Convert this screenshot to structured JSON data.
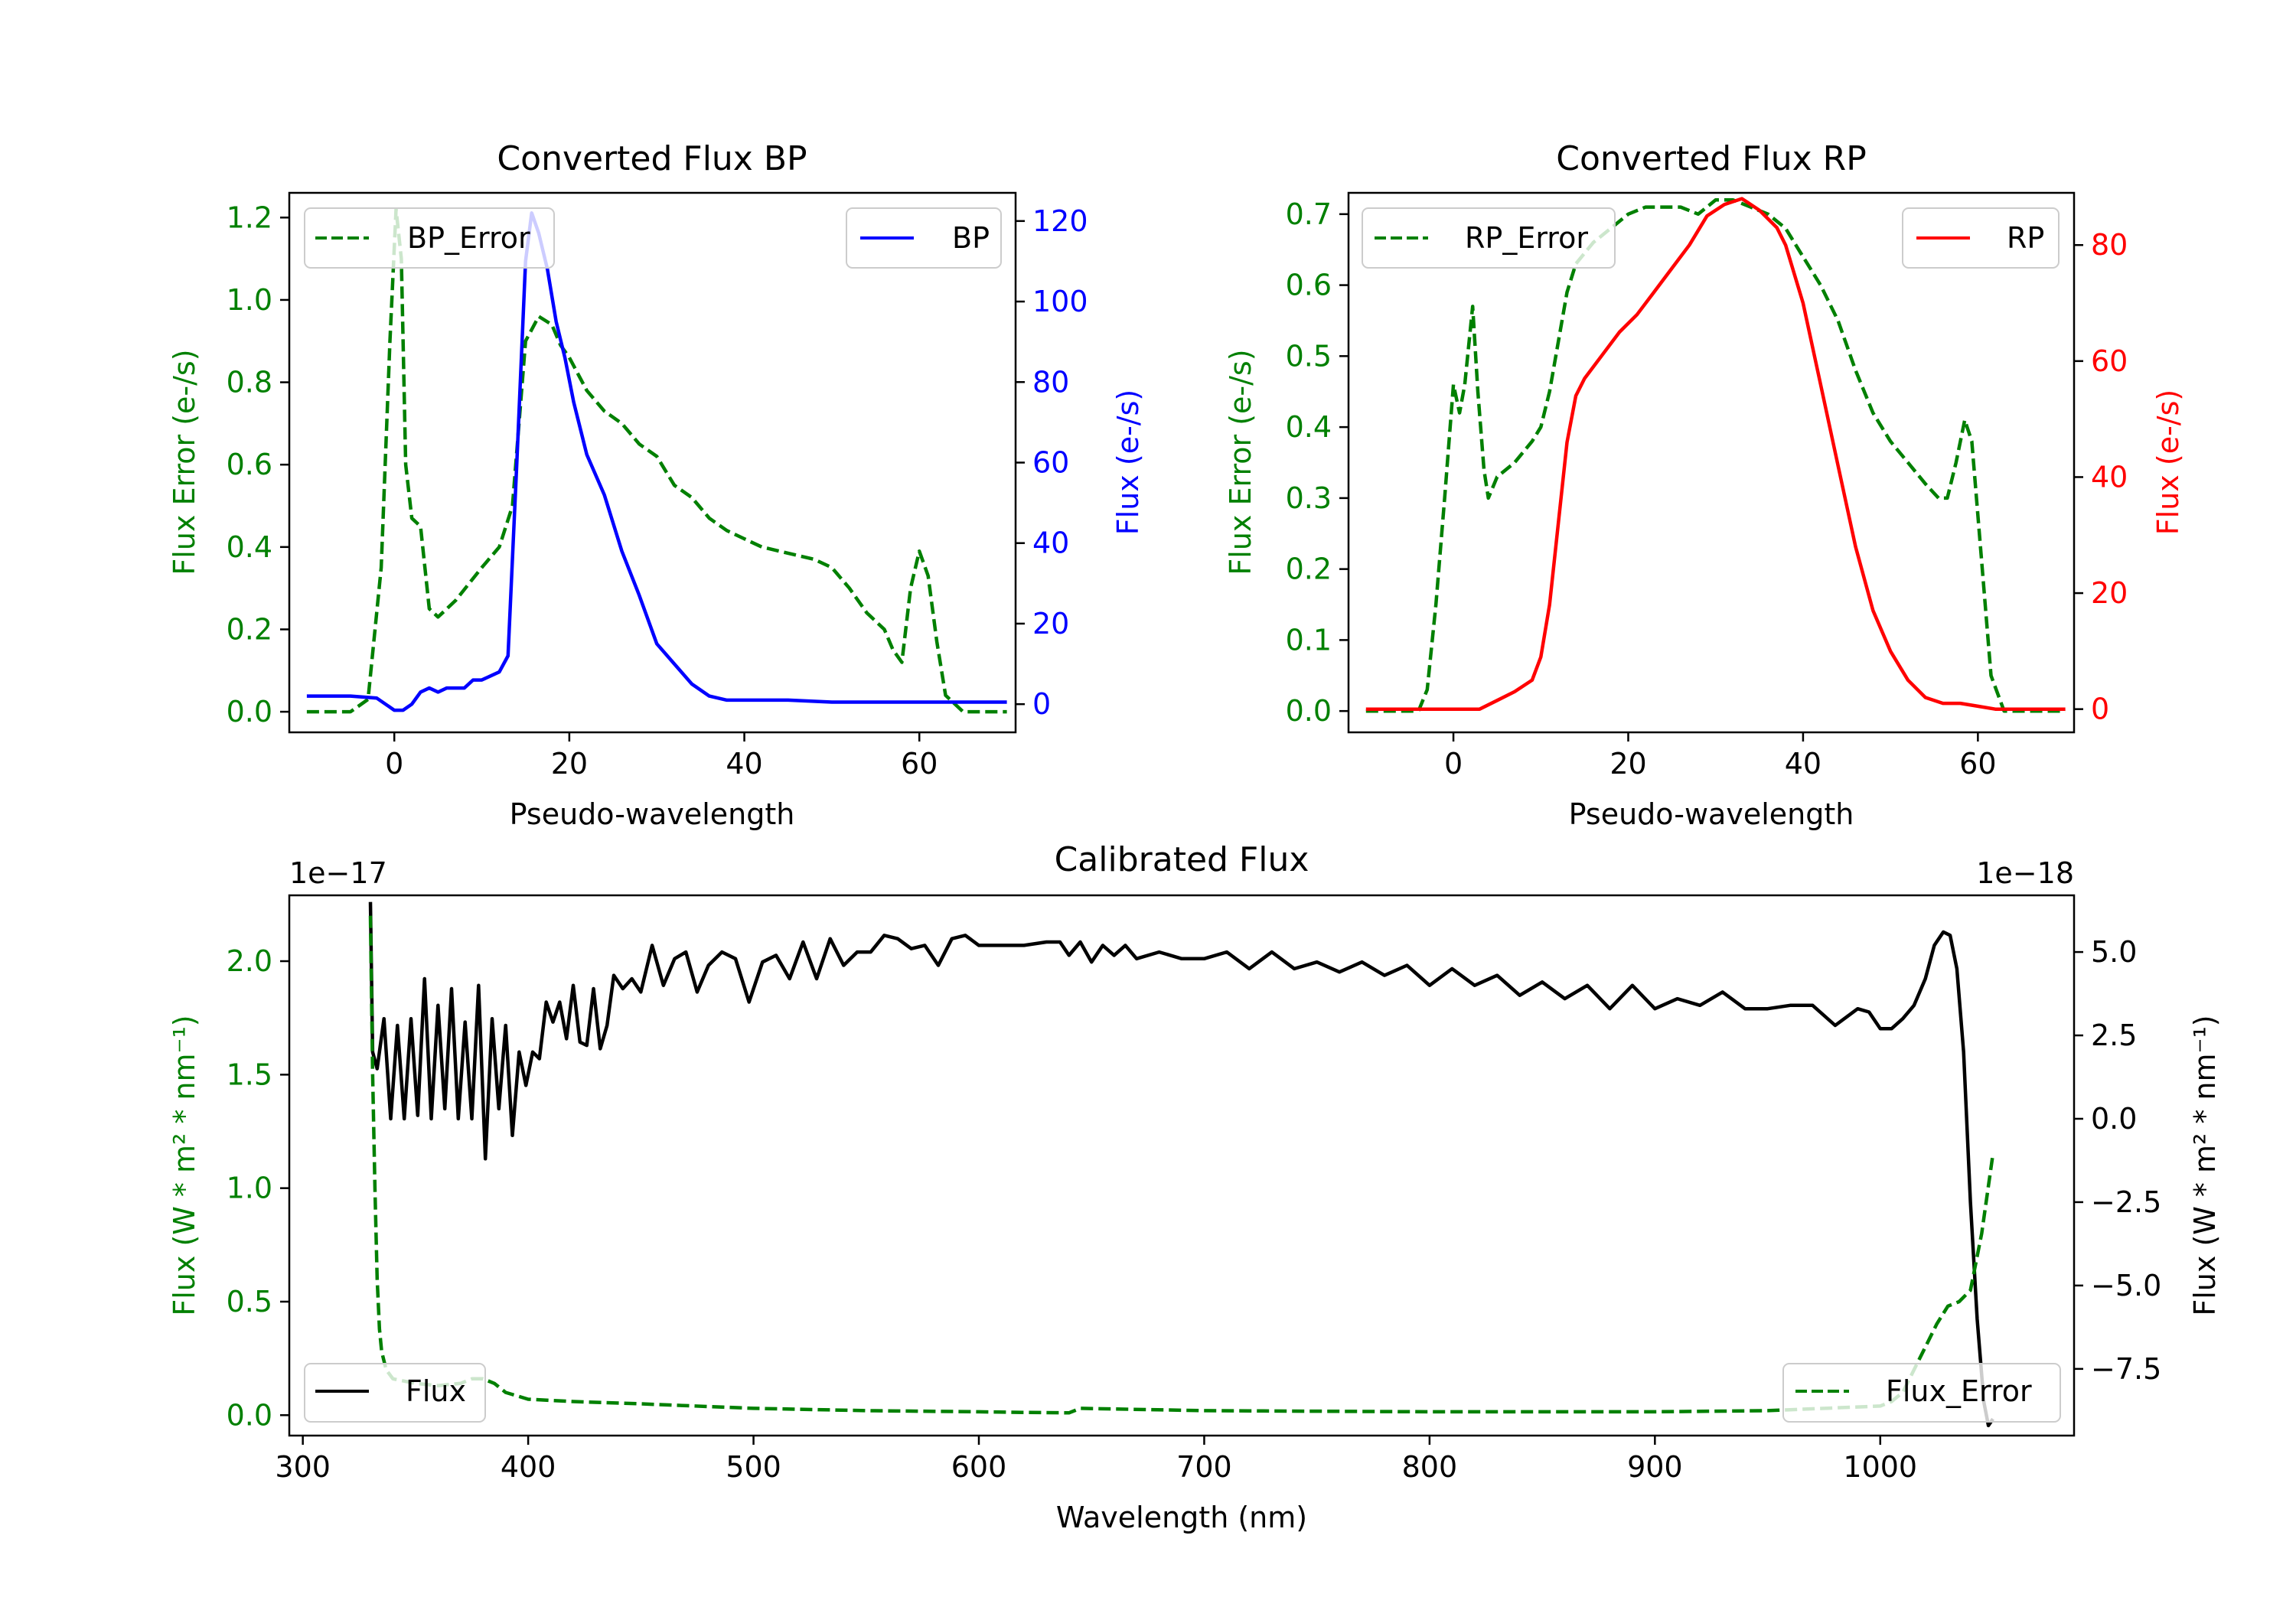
{
  "colors": {
    "green": "#008000",
    "blue": "#0000ff",
    "red": "#ff0000",
    "black": "#000000"
  },
  "chart_data": [
    {
      "id": "bp",
      "type": "line",
      "title": "Converted Flux BP",
      "xlabel": "Pseudo-wavelength",
      "ylabel_left": "Flux Error (e-/s)",
      "ylabel_right": "Flux (e-/s)",
      "xlim": [
        -12,
        71
      ],
      "ylim_left": [
        -0.05,
        1.26
      ],
      "ylim_right": [
        -7,
        127
      ],
      "xticks": [
        0,
        20,
        40,
        60
      ],
      "yticks_left": [
        0.0,
        0.2,
        0.4,
        0.6,
        0.8,
        1.0,
        1.2
      ],
      "yticks_right": [
        0,
        20,
        40,
        60,
        80,
        100,
        120
      ],
      "legend_left": "BP_Error",
      "legend_right": "BP",
      "series": [
        {
          "name": "BP_Error",
          "axis": "left",
          "style": "dashed",
          "color": "green",
          "x": [
            -10,
            -5,
            -3,
            -1.5,
            -0.5,
            0.2,
            0.8,
            1.3,
            2,
            3,
            4,
            5,
            7,
            10,
            12,
            13.5,
            15,
            16.5,
            18,
            19,
            20,
            22,
            24,
            26,
            28,
            30,
            32,
            34,
            36,
            38,
            40,
            42,
            44,
            46,
            48,
            50,
            52,
            54,
            56,
            57,
            58,
            59,
            60,
            61,
            62,
            63,
            65,
            70
          ],
          "y": [
            0.0,
            0.0,
            0.03,
            0.35,
            0.9,
            1.22,
            1.1,
            0.6,
            0.47,
            0.45,
            0.25,
            0.23,
            0.27,
            0.35,
            0.4,
            0.5,
            0.9,
            0.96,
            0.94,
            0.89,
            0.86,
            0.78,
            0.73,
            0.7,
            0.65,
            0.62,
            0.55,
            0.52,
            0.47,
            0.44,
            0.42,
            0.4,
            0.39,
            0.38,
            0.37,
            0.35,
            0.3,
            0.24,
            0.2,
            0.15,
            0.12,
            0.3,
            0.39,
            0.33,
            0.17,
            0.04,
            0.0,
            0.0
          ]
        },
        {
          "name": "BP",
          "axis": "right",
          "style": "solid",
          "color": "blue",
          "x": [
            -10,
            -5,
            -2,
            0,
            1,
            2,
            3,
            4,
            5,
            6,
            7,
            8,
            9,
            10,
            11,
            12,
            13,
            14,
            15,
            15.7,
            16.5,
            17.5,
            18.5,
            19.5,
            20.5,
            22,
            24,
            26,
            28,
            30,
            32,
            34,
            36,
            38,
            40,
            45,
            50,
            55,
            60,
            65,
            70
          ],
          "y": [
            2,
            2,
            1.5,
            -1.5,
            -1.5,
            0,
            3,
            4,
            3,
            4,
            4,
            4,
            6,
            6,
            7,
            8,
            12,
            60,
            110,
            122,
            117,
            108,
            95,
            86,
            75,
            62,
            52,
            38,
            27,
            15,
            10,
            5,
            2,
            1,
            1,
            1,
            0.5,
            0.5,
            0.5,
            0.5,
            0.5
          ]
        }
      ]
    },
    {
      "id": "rp",
      "type": "line",
      "title": "Converted Flux RP",
      "xlabel": "Pseudo-wavelength",
      "ylabel_left": "Flux Error (e-/s)",
      "ylabel_right": "Flux (e-/s)",
      "xlim": [
        -12,
        71
      ],
      "ylim_left": [
        -0.03,
        0.73
      ],
      "ylim_right": [
        -4,
        89
      ],
      "xticks": [
        0,
        20,
        40,
        60
      ],
      "yticks_left": [
        0.0,
        0.1,
        0.2,
        0.3,
        0.4,
        0.5,
        0.6,
        0.7
      ],
      "yticks_right": [
        0,
        20,
        40,
        60,
        80
      ],
      "legend_left": "RP_Error",
      "legend_right": "RP",
      "series": [
        {
          "name": "RP_Error",
          "axis": "left",
          "style": "dashed",
          "color": "green",
          "x": [
            -10,
            -4,
            -3,
            -2,
            -1,
            0,
            0.7,
            1.3,
            2.2,
            2.8,
            3.5,
            4,
            5,
            7,
            9,
            10,
            11,
            12,
            13,
            14,
            16,
            18,
            20,
            22,
            24,
            26,
            28,
            30,
            32,
            34,
            36,
            38,
            40,
            42,
            44,
            46,
            48,
            50,
            52,
            54,
            55.5,
            56.5,
            57.5,
            58.5,
            59.3,
            60.5,
            61.5,
            63,
            65,
            70
          ],
          "y": [
            0.0,
            0.0,
            0.03,
            0.15,
            0.3,
            0.46,
            0.42,
            0.46,
            0.57,
            0.45,
            0.34,
            0.3,
            0.33,
            0.35,
            0.38,
            0.4,
            0.45,
            0.52,
            0.59,
            0.63,
            0.66,
            0.68,
            0.7,
            0.71,
            0.71,
            0.71,
            0.7,
            0.72,
            0.72,
            0.71,
            0.7,
            0.68,
            0.64,
            0.6,
            0.55,
            0.48,
            0.42,
            0.38,
            0.35,
            0.32,
            0.3,
            0.3,
            0.35,
            0.41,
            0.38,
            0.2,
            0.05,
            0.0,
            0.0,
            0.0
          ]
        },
        {
          "name": "RP",
          "axis": "right",
          "style": "solid",
          "color": "red",
          "x": [
            -10,
            -5,
            0,
            2,
            3,
            5,
            7,
            9,
            10,
            11,
            12,
            13,
            14,
            15,
            17,
            19,
            21,
            23,
            25,
            27,
            29,
            31,
            33,
            35,
            37,
            38,
            40,
            42,
            44,
            46,
            48,
            50,
            52,
            54,
            56,
            58,
            60,
            62,
            70
          ],
          "y": [
            0,
            0,
            0,
            0,
            0,
            1.5,
            3,
            5,
            9,
            18,
            32,
            46,
            54,
            57,
            61,
            65,
            68,
            72,
            76,
            80,
            85,
            87,
            88,
            86,
            83,
            80,
            70,
            56,
            42,
            28,
            17,
            10,
            5,
            2,
            1,
            1,
            0.5,
            0,
            0
          ]
        }
      ]
    },
    {
      "id": "cal",
      "type": "line",
      "title": "Calibrated Flux",
      "xlabel": "Wavelength (nm)",
      "ylabel_left": "Flux (W * m² * nm⁻¹)",
      "ylabel_right": "Flux (W * m² * nm⁻¹)",
      "offset_left": "1e−17",
      "offset_right": "1e−18",
      "xlim": [
        294,
        1086
      ],
      "ylim_left": [
        -0.09,
        2.29
      ],
      "ylim_right": [
        -9.5,
        6.7
      ],
      "xticks": [
        300,
        400,
        500,
        600,
        700,
        800,
        900,
        1000
      ],
      "yticks_left": [
        0.0,
        0.5,
        1.0,
        1.5,
        2.0
      ],
      "yticks_left_labels": [
        "0.0",
        "0.5",
        "1.0",
        "1.5",
        "2.0"
      ],
      "yticks_right": [
        -7.5,
        -5.0,
        -2.5,
        0.0,
        2.5,
        5.0
      ],
      "yticks_right_labels": [
        "−7.5",
        "−5.0",
        "−2.5",
        "0.0",
        "2.5",
        "5.0"
      ],
      "legend_left": "Flux",
      "legend_right": "Flux_Error",
      "series": [
        {
          "name": "Flux",
          "axis": "right",
          "style": "solid",
          "color": "black",
          "x": [
            330,
            331,
            333,
            336,
            339,
            342,
            345,
            348,
            351,
            354,
            357,
            360,
            363,
            366,
            369,
            372,
            375,
            378,
            381,
            384,
            387,
            390,
            393,
            396,
            399,
            402,
            405,
            408,
            411,
            414,
            417,
            420,
            423,
            426,
            429,
            432,
            435,
            438,
            442,
            446,
            450,
            455,
            460,
            465,
            470,
            475,
            480,
            486,
            492,
            498,
            504,
            510,
            516,
            522,
            528,
            534,
            540,
            546,
            552,
            558,
            564,
            570,
            576,
            582,
            588,
            594,
            600,
            610,
            620,
            630,
            636,
            640,
            645,
            650,
            655,
            660,
            665,
            670,
            680,
            690,
            700,
            710,
            720,
            730,
            740,
            750,
            760,
            770,
            780,
            790,
            800,
            810,
            820,
            830,
            840,
            850,
            860,
            870,
            880,
            890,
            900,
            910,
            920,
            930,
            940,
            950,
            960,
            970,
            980,
            990,
            995,
            1000,
            1005,
            1010,
            1015,
            1020,
            1024,
            1028,
            1031,
            1034,
            1037,
            1040,
            1043,
            1046,
            1048,
            1050
          ],
          "y": [
            6.5,
            2.0,
            1.5,
            3.0,
            0.0,
            2.8,
            0.0,
            3.0,
            0.1,
            4.2,
            0.0,
            3.4,
            0.3,
            3.9,
            0.0,
            2.9,
            0.0,
            4.0,
            -1.2,
            3.0,
            0.3,
            2.8,
            -0.5,
            2.0,
            1.0,
            2.0,
            1.8,
            3.5,
            2.9,
            3.5,
            2.4,
            4.0,
            2.3,
            2.2,
            3.9,
            2.1,
            2.8,
            4.3,
            3.9,
            4.2,
            3.8,
            5.2,
            4.0,
            4.8,
            5.0,
            3.8,
            4.6,
            5.0,
            4.8,
            3.5,
            4.7,
            4.9,
            4.2,
            5.3,
            4.2,
            5.4,
            4.6,
            5.0,
            5.0,
            5.5,
            5.4,
            5.1,
            5.2,
            4.6,
            5.4,
            5.5,
            5.2,
            5.2,
            5.2,
            5.3,
            5.3,
            4.9,
            5.3,
            4.7,
            5.2,
            4.9,
            5.2,
            4.8,
            5.0,
            4.8,
            4.8,
            5.0,
            4.5,
            5.0,
            4.5,
            4.7,
            4.4,
            4.7,
            4.3,
            4.6,
            4.0,
            4.5,
            4.0,
            4.3,
            3.7,
            4.1,
            3.6,
            4.0,
            3.3,
            4.0,
            3.3,
            3.6,
            3.4,
            3.8,
            3.3,
            3.3,
            3.4,
            3.4,
            2.8,
            3.3,
            3.2,
            2.7,
            2.7,
            3.0,
            3.4,
            4.2,
            5.2,
            5.6,
            5.5,
            4.5,
            2.0,
            -2.5,
            -6.0,
            -8.5,
            -9.2,
            -9.0
          ]
        },
        {
          "name": "Flux_Error",
          "axis": "left",
          "style": "dashed",
          "color": "green",
          "x": [
            330,
            331,
            332,
            333,
            334,
            335,
            337,
            340,
            345,
            350,
            360,
            370,
            375,
            380,
            385,
            390,
            400,
            420,
            450,
            500,
            550,
            600,
            620,
            640,
            645,
            700,
            800,
            900,
            950,
            1000,
            1005,
            1010,
            1015,
            1020,
            1025,
            1030,
            1035,
            1040,
            1045,
            1050
          ],
          "y": [
            2.2,
            1.5,
            1.0,
            0.6,
            0.38,
            0.28,
            0.2,
            0.16,
            0.15,
            0.14,
            0.13,
            0.14,
            0.16,
            0.16,
            0.14,
            0.1,
            0.07,
            0.06,
            0.05,
            0.03,
            0.02,
            0.015,
            0.012,
            0.01,
            0.03,
            0.02,
            0.015,
            0.015,
            0.02,
            0.04,
            0.06,
            0.1,
            0.2,
            0.3,
            0.4,
            0.48,
            0.5,
            0.55,
            0.8,
            1.15
          ]
        }
      ]
    }
  ]
}
